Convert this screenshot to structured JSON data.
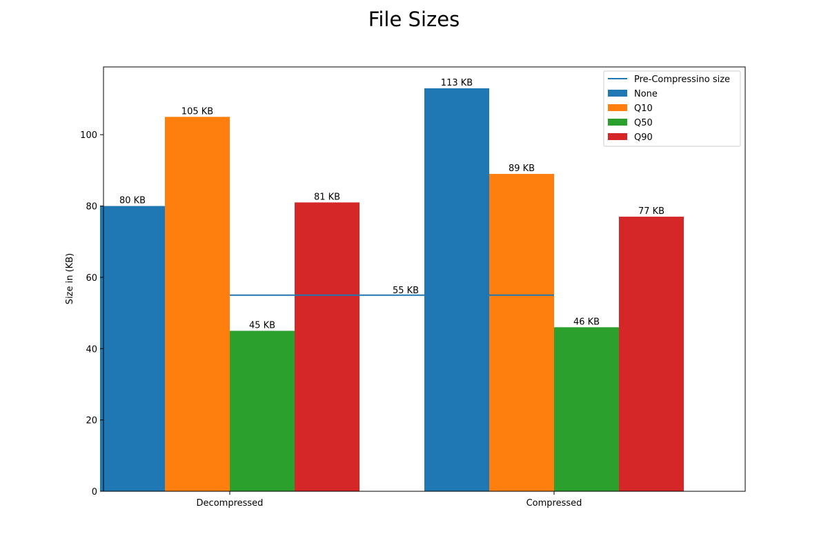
{
  "chart_data": {
    "type": "bar",
    "title": "File Sizes",
    "xlabel": "",
    "ylabel": "Size in (KB)",
    "categories": [
      "Decompressed",
      "Compressed"
    ],
    "series": [
      {
        "name": "None",
        "values": [
          80,
          113
        ],
        "labels": [
          "80 KB",
          "113 KB"
        ],
        "color": "#1f77b4"
      },
      {
        "name": "Q10",
        "values": [
          105,
          89
        ],
        "labels": [
          "105 KB",
          "89 KB"
        ],
        "color": "#ff7f0e"
      },
      {
        "name": "Q50",
        "values": [
          45,
          46
        ],
        "labels": [
          "45 KB",
          "46 KB"
        ],
        "color": "#2ca02c"
      },
      {
        "name": "Q90",
        "values": [
          81,
          77
        ],
        "labels": [
          "81 KB",
          "77 KB"
        ],
        "color": "#d62728"
      }
    ],
    "reference_line": {
      "name": "Pre-Compressino size",
      "value": 55,
      "label": "55 KB",
      "color": "#1f77b4"
    },
    "ylim": [
      0,
      119
    ],
    "yticks": [
      0,
      20,
      40,
      60,
      80,
      100
    ],
    "grid": false,
    "legend_position": "top-right"
  }
}
